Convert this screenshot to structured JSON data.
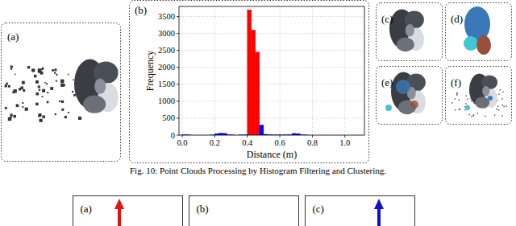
{
  "panel_labels": [
    "(a)",
    "(b)",
    "(c)",
    "(d)",
    "(e)",
    "(f)"
  ],
  "caption": "Fig. 10: Point Clouds Processing by Histogram Filtering and Clustering.",
  "next_figure_labels": [
    "(a)",
    "(b)",
    "(c)"
  ],
  "chart_data": {
    "type": "histogram",
    "x_label": "Distance (m)",
    "y_label": "Frequency",
    "bins": [
      0,
      0.025,
      0.05,
      0.075,
      0.1,
      0.125,
      0.15,
      0.175,
      0.2,
      0.225,
      0.25,
      0.275,
      0.3,
      0.325,
      0.35,
      0.375,
      0.4,
      0.425,
      0.45,
      0.475,
      0.5,
      0.525,
      0.55,
      0.575,
      0.6,
      0.625,
      0.65,
      0.675,
      0.7,
      0.725,
      0.75,
      0.775,
      0.8,
      0.825,
      0.85,
      0.875,
      0.9,
      0.925,
      0.95,
      0.975,
      1,
      1.025,
      1.05,
      1.075,
      1.1
    ],
    "values": [
      18,
      8,
      0,
      0,
      0,
      0,
      0,
      5,
      45,
      60,
      50,
      15,
      5,
      0,
      5,
      10,
      3700,
      3100,
      2450,
      300,
      25,
      10,
      5,
      5,
      5,
      10,
      15,
      50,
      45,
      10,
      5,
      0,
      0,
      0,
      0,
      0,
      0,
      0,
      0,
      0,
      0,
      0,
      0,
      0
    ],
    "colors": [
      "#0000ff",
      "#0000ff",
      "#0000ff",
      "#0000ff",
      "#0000ff",
      "#0000ff",
      "#0000ff",
      "#0000ff",
      "#0000ff",
      "#0000ff",
      "#0000ff",
      "#0000ff",
      "#0000ff",
      "#0000ff",
      "#0000ff",
      "#0000ff",
      "#ff0000",
      "#ff0000",
      "#ff0000",
      "#0000ff",
      "#0000ff",
      "#0000ff",
      "#0000ff",
      "#0000ff",
      "#0000ff",
      "#0000ff",
      "#0000ff",
      "#0000ff",
      "#0000ff",
      "#0000ff",
      "#0000ff",
      "#0000ff",
      "#0000ff",
      "#0000ff",
      "#0000ff",
      "#0000ff",
      "#0000ff",
      "#0000ff",
      "#0000ff",
      "#0000ff",
      "#0000ff",
      "#0000ff",
      "#0000ff",
      "#0000ff"
    ],
    "xlim": [
      -0.02,
      1.12
    ],
    "ylim": [
      0,
      3800
    ],
    "xticks": [
      {
        "value": 0,
        "label": "0.0"
      },
      0.2,
      0.4,
      0.6,
      0.8,
      {
        "value": 1,
        "label": "1.0"
      }
    ],
    "yticks": [
      0,
      500,
      1000,
      1500,
      2000,
      2500,
      3000,
      3500
    ],
    "grid": true
  }
}
